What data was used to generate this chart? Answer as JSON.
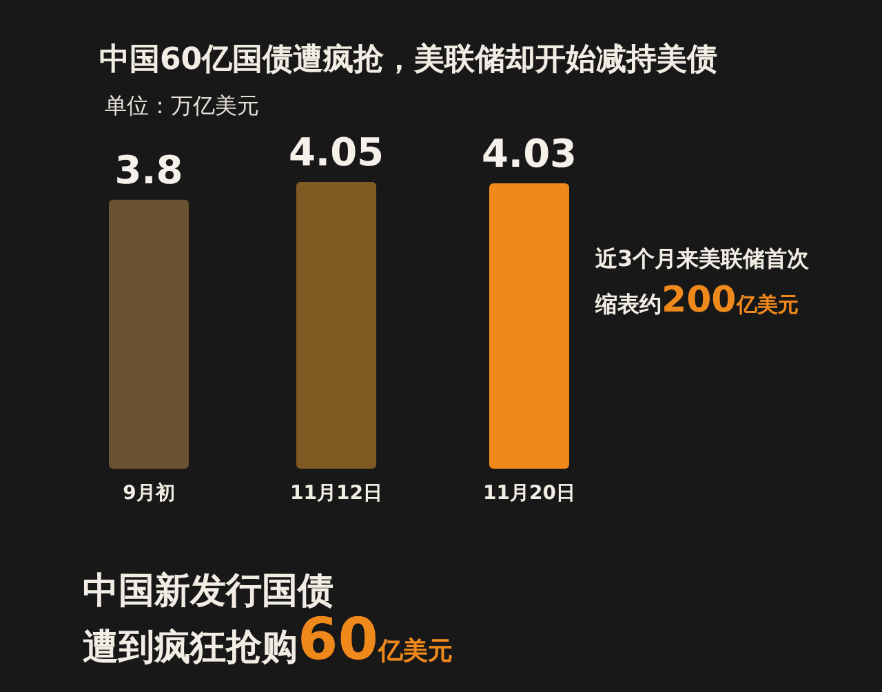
{
  "chart_data": {
    "type": "bar",
    "title": "中国60亿国债遭疯抢，美联储却开始减持美债",
    "subtitle": "单位：万亿美元",
    "categories": [
      "9月初",
      "11月12日",
      "11月20日"
    ],
    "values": [
      3.8,
      4.05,
      4.03
    ],
    "colors": [
      "#6b5230",
      "#7e5a22",
      "#f0891c"
    ],
    "data_labels": true,
    "annotations": [
      "近3个月来美联储首次",
      "缩表约200亿美元",
      "中国新发行国债",
      "遭到疯狂抢购60亿美元"
    ]
  }
}
